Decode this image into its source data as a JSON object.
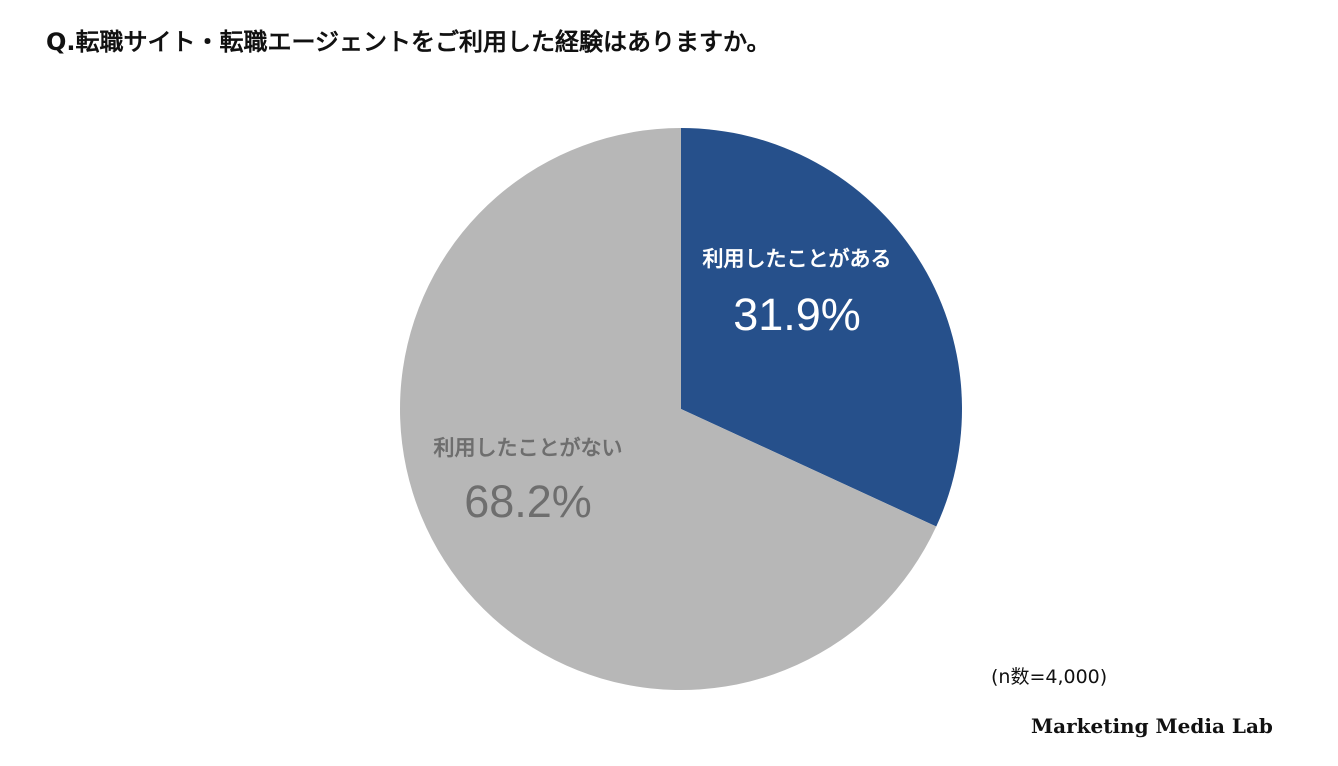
{
  "chart_data": {
    "type": "pie",
    "title": "Q.転職サイト・転職エージェントをご利用した経験はありますか。",
    "slices": [
      {
        "label": "利用したことがある",
        "value": 31.9,
        "display": "31.9%",
        "color": "#26508b",
        "text_color": "#ffffff"
      },
      {
        "label": "利用したことがない",
        "value": 68.2,
        "display": "68.2%",
        "color": "#b7b7b7",
        "text_color": "#6e6e6e"
      }
    ],
    "start_angle_deg": 0,
    "direction": "clockwise",
    "legend": "none",
    "note": "(n数=4,000)"
  },
  "brand": "Marketing Media Lab"
}
